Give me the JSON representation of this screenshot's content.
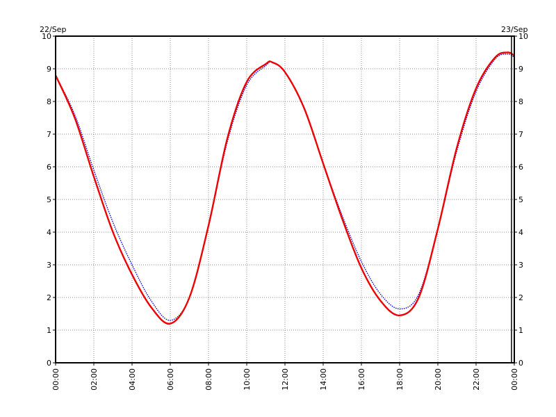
{
  "chart_data": {
    "type": "line",
    "title": "",
    "xlabel": "",
    "ylabel": "",
    "date_labels": {
      "start": "22/Sep",
      "end": "23/Sep"
    },
    "xlim": [
      "00:00",
      "24:00"
    ],
    "ylim": [
      0,
      10
    ],
    "grid": true,
    "x_ticks": [
      "00:00",
      "02:00",
      "04:00",
      "06:00",
      "08:00",
      "10:00",
      "12:00",
      "14:00",
      "16:00",
      "18:00",
      "20:00",
      "22:00",
      "00:00"
    ],
    "y_ticks": [
      "0",
      "1",
      "2",
      "3",
      "4",
      "5",
      "6",
      "7",
      "8",
      "9",
      "10"
    ],
    "colors": {
      "series_a": "#0000cc",
      "series_b": "#ee0000",
      "grid": "#888888",
      "axis": "#000000"
    },
    "x": [
      "00:00",
      "01:00",
      "02:00",
      "03:00",
      "04:00",
      "05:00",
      "06:00",
      "07:00",
      "08:00",
      "09:00",
      "10:00",
      "11:00",
      "11:20",
      "12:00",
      "13:00",
      "14:00",
      "15:00",
      "16:00",
      "17:00",
      "18:00",
      "19:00",
      "20:00",
      "21:00",
      "22:00",
      "23:00",
      "23:40",
      "24:00"
    ],
    "series": [
      {
        "values": [
          8.8,
          7.6,
          5.9,
          4.3,
          3.0,
          1.9,
          1.3,
          2.0,
          4.2,
          6.8,
          8.5,
          9.1,
          9.2,
          8.9,
          7.8,
          6.1,
          4.5,
          3.1,
          2.1,
          1.65,
          2.1,
          4.1,
          6.5,
          8.3,
          9.3,
          9.45,
          9.35
        ]
      },
      {
        "values": [
          8.8,
          7.5,
          5.7,
          4.0,
          2.7,
          1.7,
          1.2,
          2.0,
          4.2,
          6.9,
          8.6,
          9.15,
          9.2,
          8.9,
          7.8,
          6.1,
          4.4,
          2.9,
          1.9,
          1.45,
          2.0,
          4.1,
          6.6,
          8.4,
          9.35,
          9.5,
          9.4
        ]
      }
    ]
  }
}
